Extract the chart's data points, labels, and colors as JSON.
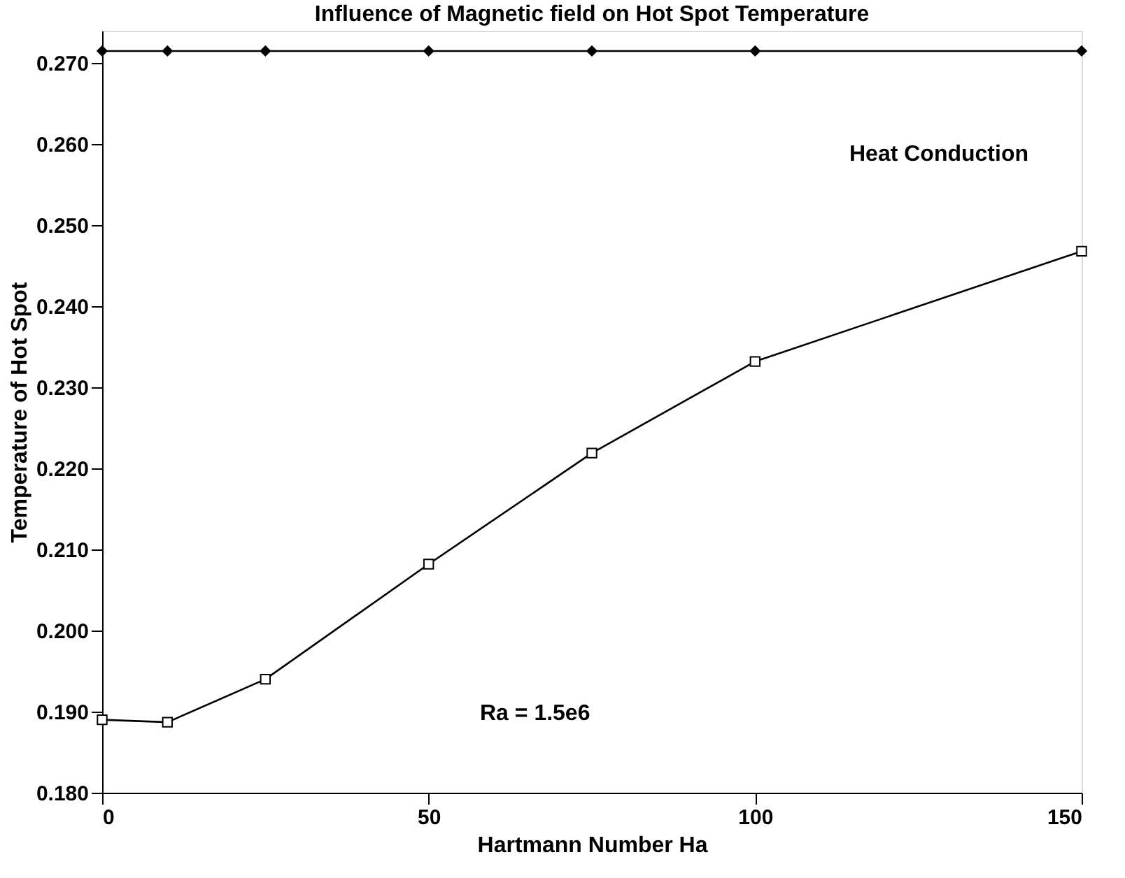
{
  "chart_data": {
    "type": "line",
    "title": "Influence of Magnetic field on Hot Spot Temperature",
    "xlabel": "Hartmann Number Ha",
    "ylabel": "Temperature of Hot Spot",
    "x": [
      0,
      10,
      25,
      50,
      75,
      100,
      150
    ],
    "series": [
      {
        "color": "#000000",
        "marker": "square",
        "values": [
          0.189,
          0.1887,
          0.194,
          0.2082,
          0.2219,
          0.2332,
          0.2468
        ]
      },
      {
        "color": "#000000",
        "marker": "diamond",
        "values": [
          0.2715,
          0.2715,
          0.2715,
          0.2715,
          0.2715,
          0.2715,
          0.2715
        ]
      }
    ],
    "xlim": [
      0,
      150
    ],
    "xticks": [
      0,
      50,
      100,
      150
    ],
    "ylim": [
      0.18,
      0.274
    ],
    "yticks": [
      {
        "value": 0.18,
        "label": "0.180"
      },
      {
        "value": 0.19,
        "label": "0.190"
      },
      {
        "value": 0.2,
        "label": "0.200"
      },
      {
        "value": 0.21,
        "label": "0.210"
      },
      {
        "value": 0.22,
        "label": "0.220"
      },
      {
        "value": 0.23,
        "label": "0.230"
      },
      {
        "value": 0.24,
        "label": "0.240"
      },
      {
        "value": 0.25,
        "label": "0.250"
      },
      {
        "value": 0.26,
        "label": "0.260"
      },
      {
        "value": 0.27,
        "label": "0.270"
      }
    ],
    "annotations": [
      "Heat Conduction",
      "Ra = 1.5e6"
    ],
    "grid": false,
    "line_style": "solid"
  }
}
